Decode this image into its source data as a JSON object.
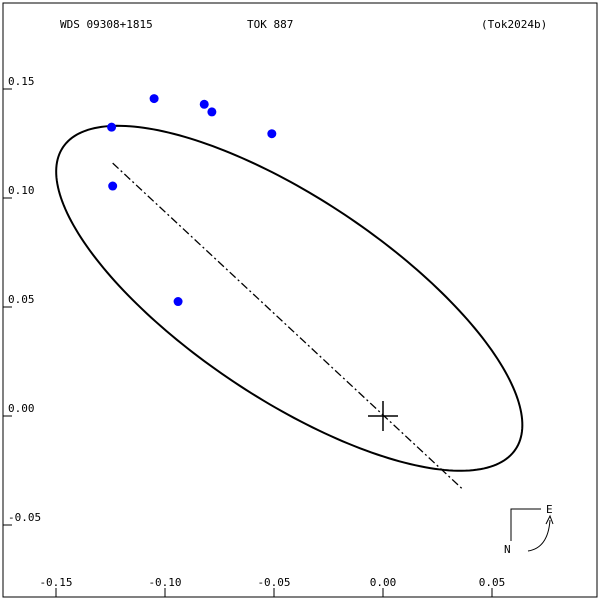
{
  "header": {
    "wds_id": "WDS 09308+1815",
    "discoverer": "TOK 887",
    "reference": "(Tok2024b)"
  },
  "orientation": {
    "east_label": "E",
    "north_label": "N"
  },
  "chart_data": {
    "type": "scatter",
    "title": "",
    "xlabel": "",
    "ylabel": "",
    "xlim": [
      -0.15,
      0.09
    ],
    "ylim": [
      -0.07,
      0.185
    ],
    "x_ticks": [
      -0.15,
      -0.1,
      -0.05,
      0.0,
      0.05
    ],
    "x_tick_labels": [
      "-0.15",
      "-0.10",
      "-0.05",
      "0.00",
      "0.05"
    ],
    "y_ticks": [
      0.15,
      0.1,
      0.05,
      0.0,
      -0.05
    ],
    "y_tick_labels": [
      "0.15",
      "0.10",
      "0.05",
      "0.00",
      "-0.05"
    ],
    "grid": false,
    "primary_star": {
      "x": 0.0,
      "y": 0.0,
      "marker": "cross"
    },
    "observations": [
      {
        "x": -0.105,
        "y": 0.1456
      },
      {
        "x": -0.1245,
        "y": 0.1325
      },
      {
        "x": -0.082,
        "y": 0.143
      },
      {
        "x": -0.0785,
        "y": 0.1395
      },
      {
        "x": -0.051,
        "y": 0.1295
      },
      {
        "x": -0.124,
        "y": 0.1055
      },
      {
        "x": -0.094,
        "y": 0.0525
      }
    ],
    "orbit_ellipse": {
      "center": {
        "x": -0.043,
        "y": 0.054
      },
      "semi_major": 0.1248,
      "semi_minor": 0.046,
      "angle_deg": 146.3
    },
    "line_of_nodes": [
      {
        "x": -0.124,
        "y": 0.116
      },
      {
        "x": 0.037,
        "y": -0.034
      }
    ],
    "colors": {
      "observation": "#0000ff",
      "orbit": "#000000",
      "frame": "#000000"
    }
  }
}
